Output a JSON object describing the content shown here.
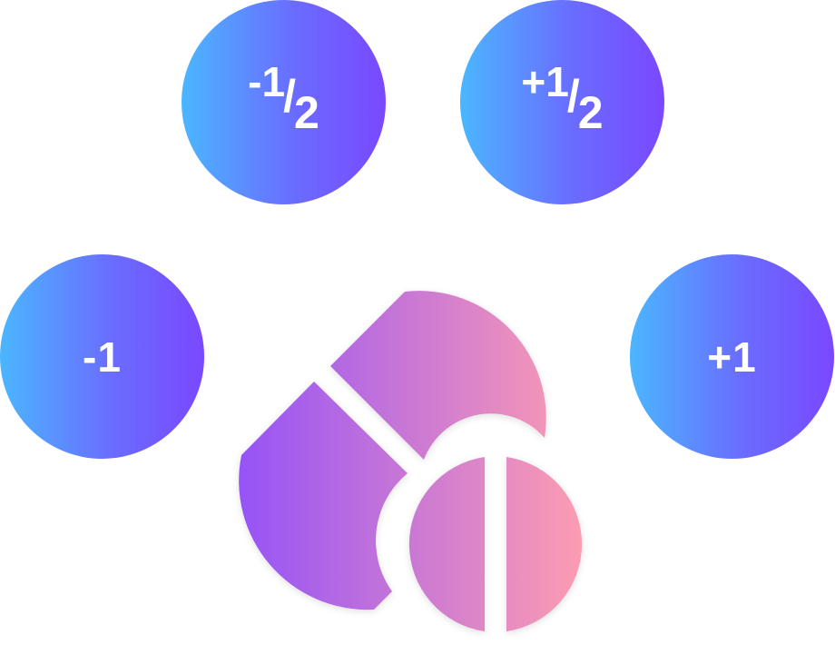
{
  "doses": {
    "minus_half": {
      "sign": "-",
      "whole": "1",
      "slash": "/",
      "denominator": "2"
    },
    "plus_half": {
      "sign": "+",
      "whole": "1",
      "slash": "/",
      "denominator": "2"
    },
    "minus_one": {
      "label": "-1"
    },
    "plus_one": {
      "label": "+1"
    }
  },
  "colors": {
    "button_gradient_start": "#4bb6ff",
    "button_gradient_end": "#7a48ff",
    "pill_gradient_start": "#8a4bff",
    "pill_gradient_end": "#ff9eb0"
  },
  "icons": {
    "illustration": "capsule-and-split-tablet-icon"
  }
}
